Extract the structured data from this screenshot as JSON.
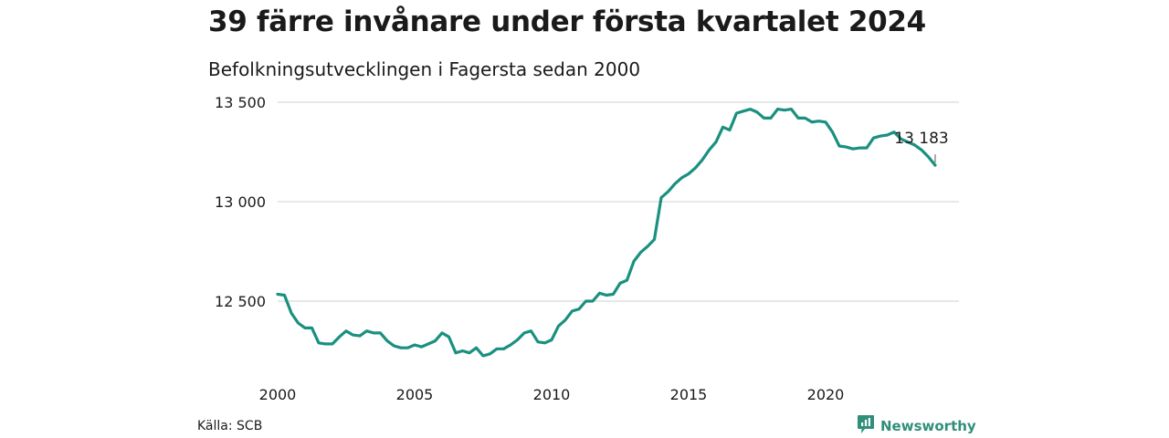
{
  "header": {
    "title": "39 färre invånare under första kvartalet 2024",
    "subtitle": "Befolkningsutvecklingen i Fagersta sedan 2000"
  },
  "footer": {
    "source": "Källa: SCB",
    "brand": "Newsworthy"
  },
  "colors": {
    "line": "#1a9080",
    "grid": "#d9d9d9",
    "text": "#1a1a1a",
    "brand": "#2f8f7a"
  },
  "icons": {
    "brand_logo": "newsworthy-logo-icon"
  },
  "chart_data": {
    "type": "line",
    "title": "39 färre invånare under första kvartalet 2024",
    "subtitle": "Befolkningsutvecklingen i Fagersta sedan 2000",
    "xlabel": "",
    "ylabel": "",
    "x_ticks": [
      "2000",
      "2005",
      "2010",
      "2015",
      "2020"
    ],
    "y_ticks": [
      {
        "value": 12500,
        "label": "12 500"
      },
      {
        "value": 13000,
        "label": "13 000"
      },
      {
        "value": 13500,
        "label": "13 500"
      }
    ],
    "xlim": [
      2000.0,
      2025.0
    ],
    "ylim": [
      12100,
      13600
    ],
    "grid": true,
    "legend": "none",
    "annotation": {
      "x": 2024.0,
      "value": 13183,
      "label": "13 183"
    },
    "series": [
      {
        "x": [
          2000.0,
          2000.25,
          2000.5,
          2000.75,
          2001.0,
          2001.25,
          2001.5,
          2001.75,
          2002.0,
          2002.25,
          2002.5,
          2002.75,
          2003.0,
          2003.25,
          2003.5,
          2003.75,
          2004.0,
          2004.25,
          2004.5,
          2004.75,
          2005.0,
          2005.25,
          2005.5,
          2005.75,
          2006.0,
          2006.25,
          2006.5,
          2006.75,
          2007.0,
          2007.25,
          2007.5,
          2007.75,
          2008.0,
          2008.25,
          2008.5,
          2008.75,
          2009.0,
          2009.25,
          2009.5,
          2009.75,
          2010.0,
          2010.25,
          2010.5,
          2010.75,
          2011.0,
          2011.25,
          2011.5,
          2011.75,
          2012.0,
          2012.25,
          2012.5,
          2012.75,
          2013.0,
          2013.25,
          2013.5,
          2013.75,
          2014.0,
          2014.25,
          2014.5,
          2014.75,
          2015.0,
          2015.25,
          2015.5,
          2015.75,
          2016.0,
          2016.25,
          2016.5,
          2016.75,
          2017.0,
          2017.25,
          2017.5,
          2017.75,
          2018.0,
          2018.25,
          2018.5,
          2018.75,
          2019.0,
          2019.25,
          2019.5,
          2019.75,
          2020.0,
          2020.25,
          2020.5,
          2020.75,
          2021.0,
          2021.25,
          2021.5,
          2021.75,
          2022.0,
          2022.25,
          2022.5,
          2022.75,
          2023.0,
          2023.25,
          2023.5,
          2023.75,
          2024.0
        ],
        "values": [
          12535,
          12530,
          12440,
          12390,
          12365,
          12365,
          12290,
          12285,
          12285,
          12320,
          12350,
          12330,
          12325,
          12350,
          12340,
          12340,
          12300,
          12275,
          12265,
          12265,
          12280,
          12270,
          12285,
          12300,
          12340,
          12320,
          12240,
          12250,
          12240,
          12265,
          12225,
          12235,
          12260,
          12260,
          12280,
          12305,
          12340,
          12350,
          12295,
          12290,
          12305,
          12375,
          12405,
          12450,
          12460,
          12500,
          12500,
          12540,
          12530,
          12535,
          12590,
          12605,
          12700,
          12745,
          12775,
          12810,
          13020,
          13050,
          13090,
          13120,
          13140,
          13170,
          13210,
          13260,
          13300,
          13375,
          13360,
          13445,
          13455,
          13465,
          13450,
          13420,
          13420,
          13465,
          13460,
          13465,
          13420,
          13420,
          13400,
          13405,
          13400,
          13350,
          13280,
          13275,
          13265,
          13270,
          13270,
          13320,
          13330,
          13335,
          13350,
          13315,
          13300,
          13285,
          13260,
          13225,
          13183
        ]
      }
    ]
  }
}
